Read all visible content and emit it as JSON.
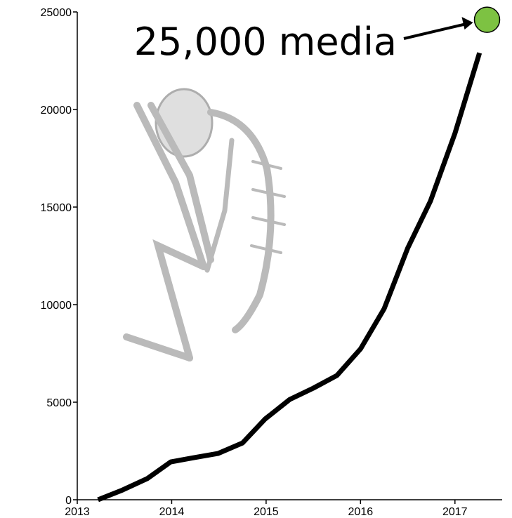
{
  "chart_data": {
    "type": "line",
    "x": [
      2013.22,
      2013.48,
      2013.74,
      2013.99,
      2014.24,
      2014.49,
      2014.75,
      2014.99,
      2015.25,
      2015.5,
      2015.75,
      2016.0,
      2016.25,
      2016.5,
      2016.74,
      2017.0,
      2017.26
    ],
    "series": [
      {
        "color": "#000000",
        "values": [
          0,
          500,
          1080,
          1940,
          2160,
          2370,
          2910,
          4140,
          5140,
          5720,
          6370,
          7730,
          9790,
          12900,
          15300,
          18780,
          22900
        ]
      }
    ],
    "highlight": {
      "x": 2017.34,
      "y": 24600,
      "color": "#7dc242"
    },
    "annotation": "25,000 media",
    "xlim": [
      2013,
      2017.5
    ],
    "xticks": [
      2013,
      2014,
      2015,
      2016,
      2017
    ],
    "ylim": [
      0,
      25000
    ],
    "yticks": [
      0,
      5000,
      10000,
      15000,
      20000,
      25000
    ]
  }
}
